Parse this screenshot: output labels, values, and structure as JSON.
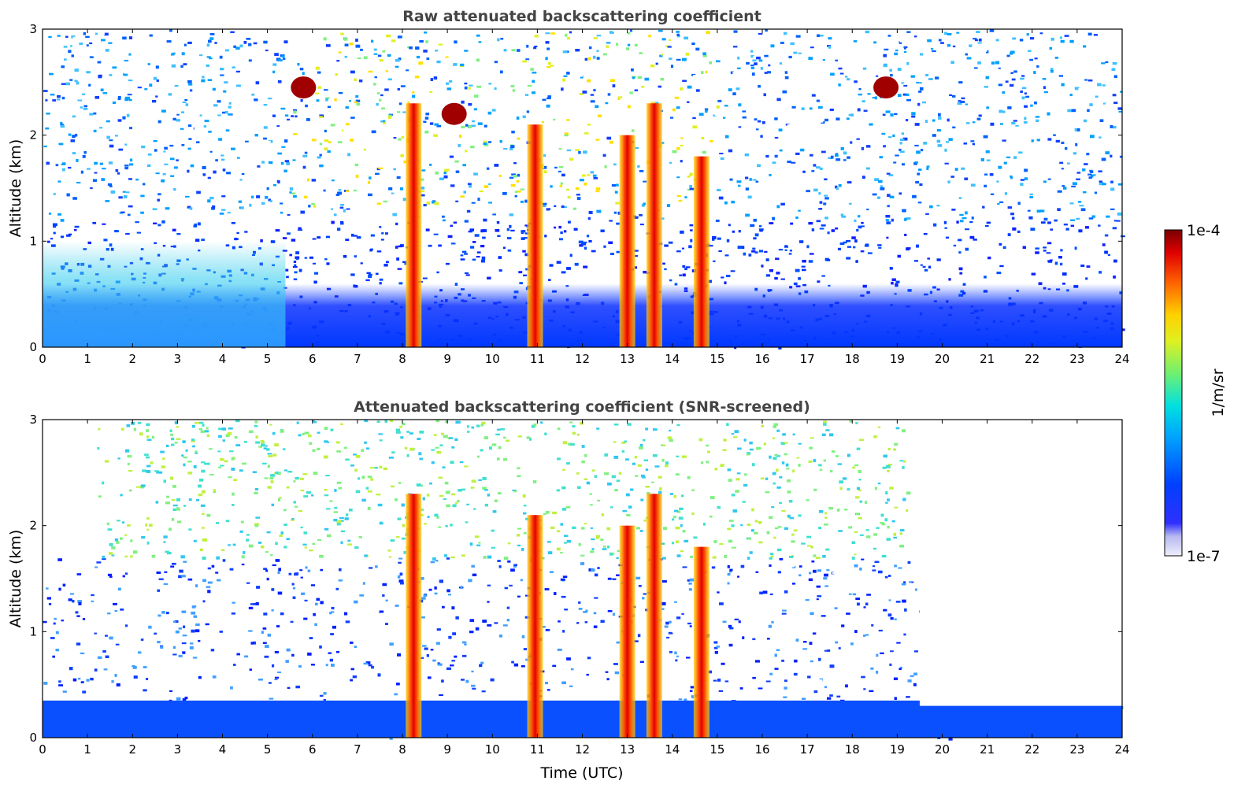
{
  "chart_data": [
    {
      "type": "heatmap",
      "title": "Raw attenuated backscattering coefficient",
      "xlabel": "",
      "ylabel": "Altitude (km)",
      "xlim": [
        0,
        24
      ],
      "ylim": [
        0,
        3
      ],
      "xticks": [
        "0",
        "1",
        "2",
        "3",
        "4",
        "5",
        "6",
        "7",
        "8",
        "9",
        "10",
        "11",
        "12",
        "13",
        "14",
        "15",
        "16",
        "17",
        "18",
        "19",
        "20",
        "21",
        "22",
        "23",
        "24"
      ],
      "yticks": [
        "0",
        "1",
        "2",
        "3"
      ],
      "features": [
        {
          "name": "boundary-layer",
          "x_range": [
            0,
            24
          ],
          "alt_range": [
            0,
            0.6
          ],
          "level": "blue"
        },
        {
          "name": "aerosol-layer",
          "x_range": [
            0,
            5.4
          ],
          "alt_range": [
            0,
            1.0
          ],
          "level": "cyan"
        },
        {
          "name": "precipitation",
          "x_center": 8.25,
          "alt_top": 2.3
        },
        {
          "name": "precipitation",
          "x_center": 10.95,
          "alt_top": 2.1
        },
        {
          "name": "precipitation",
          "x_center": 13.0,
          "alt_top": 2.0
        },
        {
          "name": "precipitation",
          "x_center": 13.6,
          "alt_top": 2.3
        },
        {
          "name": "precipitation",
          "x_center": 14.65,
          "alt_top": 1.8
        },
        {
          "name": "cloud",
          "x_center": 5.8,
          "alt_center": 2.45
        },
        {
          "name": "cloud",
          "x_center": 9.15,
          "alt_center": 2.2
        },
        {
          "name": "cloud",
          "x_center": 18.75,
          "alt_center": 2.45
        }
      ]
    },
    {
      "type": "heatmap",
      "title": "Attenuated backscattering coefficient (SNR-screened)",
      "xlabel": "Time (UTC)",
      "ylabel": "Altitude (km)",
      "xlim": [
        0,
        24
      ],
      "ylim": [
        0,
        3
      ],
      "xticks": [
        "0",
        "1",
        "2",
        "3",
        "4",
        "5",
        "6",
        "7",
        "8",
        "9",
        "10",
        "11",
        "12",
        "13",
        "14",
        "15",
        "16",
        "17",
        "18",
        "19",
        "20",
        "21",
        "22",
        "23",
        "24"
      ],
      "yticks": [
        "0",
        "1",
        "2",
        "3"
      ],
      "features": [
        {
          "name": "boundary-layer",
          "x_range": [
            0,
            24
          ],
          "alt_range": [
            0,
            0.35
          ],
          "level": "blue"
        },
        {
          "name": "screened-noise-above",
          "x_range": [
            19.5,
            24
          ],
          "alt_range": [
            0.3,
            3.0
          ],
          "level": "masked"
        },
        {
          "name": "precipitation",
          "x_center": 8.25,
          "alt_top": 2.3
        },
        {
          "name": "precipitation",
          "x_center": 10.95,
          "alt_top": 2.1
        },
        {
          "name": "precipitation",
          "x_center": 13.0,
          "alt_top": 2.0
        },
        {
          "name": "precipitation",
          "x_center": 13.6,
          "alt_top": 2.3
        },
        {
          "name": "precipitation",
          "x_center": 14.65,
          "alt_top": 1.8
        }
      ]
    }
  ],
  "colorbar": {
    "label": "1/m/sr",
    "max_label": "1e-4",
    "min_label": "1e-7",
    "range": [
      1e-07,
      0.0001
    ],
    "scale": "log",
    "colormap": [
      "#e8e8f8",
      "#c4c4f0",
      "#a0a0ee",
      "#0000ff",
      "#0050ff",
      "#00aaff",
      "#00e8e8",
      "#60f080",
      "#c8f040",
      "#ffe800",
      "#ff9000",
      "#ff2000",
      "#b00000",
      "#800000"
    ]
  }
}
